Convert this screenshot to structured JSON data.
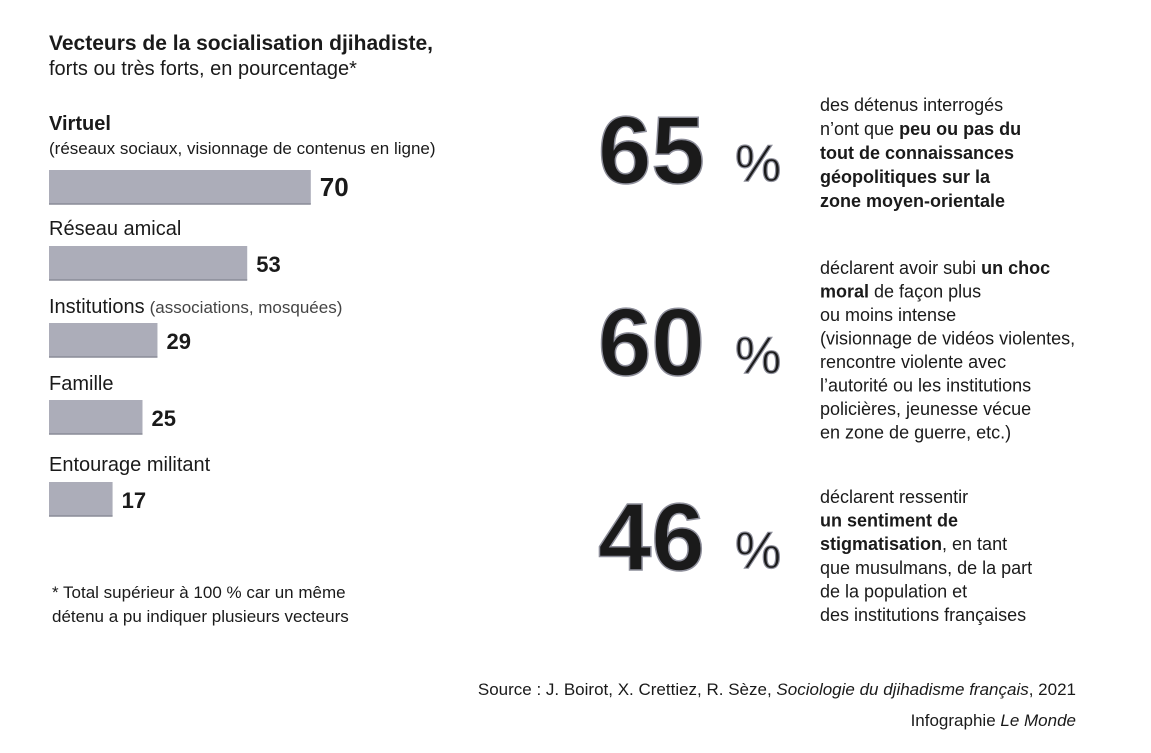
{
  "chart_data": {
    "type": "bar",
    "orientation": "horizontal",
    "title": "Vecteurs de la socialisation djihadiste,",
    "subtitle": "forts ou très forts, en pourcentage*",
    "categories": [
      "Virtuel",
      "Réseau amical",
      "Institutions",
      "Famille",
      "Entourage militant"
    ],
    "category_bold": [
      true,
      false,
      false,
      false,
      false
    ],
    "category_notes": [
      "(réseaux sociaux, visionnage de contenus en ligne)",
      null,
      "(associations, mosquées)",
      null,
      null
    ],
    "values": [
      70,
      53,
      29,
      25,
      17
    ],
    "color": "#acadb9",
    "footnote": [
      "* Total supérieur à 100 % car un même",
      "détenu a pu indiquer plusieurs vecteurs"
    ],
    "stats": [
      {
        "value": 65,
        "unit": "%",
        "lines": [
          [
            {
              "text": "des détenus interrogés",
              "bold": false
            }
          ],
          [
            {
              "text": "n’ont que ",
              "bold": false
            },
            {
              "text": "peu ou pas du",
              "bold": true
            }
          ],
          [
            {
              "text": "tout de connaissances",
              "bold": true
            }
          ],
          [
            {
              "text": "géopolitiques sur la",
              "bold": true
            }
          ],
          [
            {
              "text": "zone moyen-orientale",
              "bold": true
            }
          ]
        ]
      },
      {
        "value": 60,
        "unit": "%",
        "lines": [
          [
            {
              "text": "déclarent avoir subi ",
              "bold": false
            },
            {
              "text": "un choc",
              "bold": true
            }
          ],
          [
            {
              "text": "moral",
              "bold": true
            },
            {
              "text": " de façon plus",
              "bold": false
            }
          ],
          [
            {
              "text": "ou moins intense",
              "bold": false
            }
          ],
          [
            {
              "text": "(visionnage de vidéos violentes,",
              "bold": false
            }
          ],
          [
            {
              "text": "rencontre violente avec",
              "bold": false
            }
          ],
          [
            {
              "text": "l’autorité ou les institutions",
              "bold": false
            }
          ],
          [
            {
              "text": "policières, jeunesse vécue",
              "bold": false
            }
          ],
          [
            {
              "text": "en zone de guerre, etc.)",
              "bold": false
            }
          ]
        ]
      },
      {
        "value": 46,
        "unit": "%",
        "lines": [
          [
            {
              "text": "déclarent ressentir",
              "bold": false
            }
          ],
          [
            {
              "text": "un sentiment de",
              "bold": true
            }
          ],
          [
            {
              "text": "stigmatisation",
              "bold": true
            },
            {
              "text": ", en tant",
              "bold": false
            }
          ],
          [
            {
              "text": "que musulmans, de la part",
              "bold": false
            }
          ],
          [
            {
              "text": "de la population et",
              "bold": false
            }
          ],
          [
            {
              "text": "des institutions françaises",
              "bold": false
            }
          ]
        ]
      }
    ],
    "source": [
      {
        "text": "Source : J. Boirot, X. Crettiez, R. Sèze, ",
        "italic": false
      },
      {
        "text": "Sociologie du djihadisme français",
        "italic": true
      },
      {
        "text": ", 2021",
        "italic": false
      }
    ],
    "credit": [
      {
        "text": "Infographie ",
        "italic": false
      },
      {
        "text": "Le Monde",
        "italic": true
      }
    ]
  }
}
